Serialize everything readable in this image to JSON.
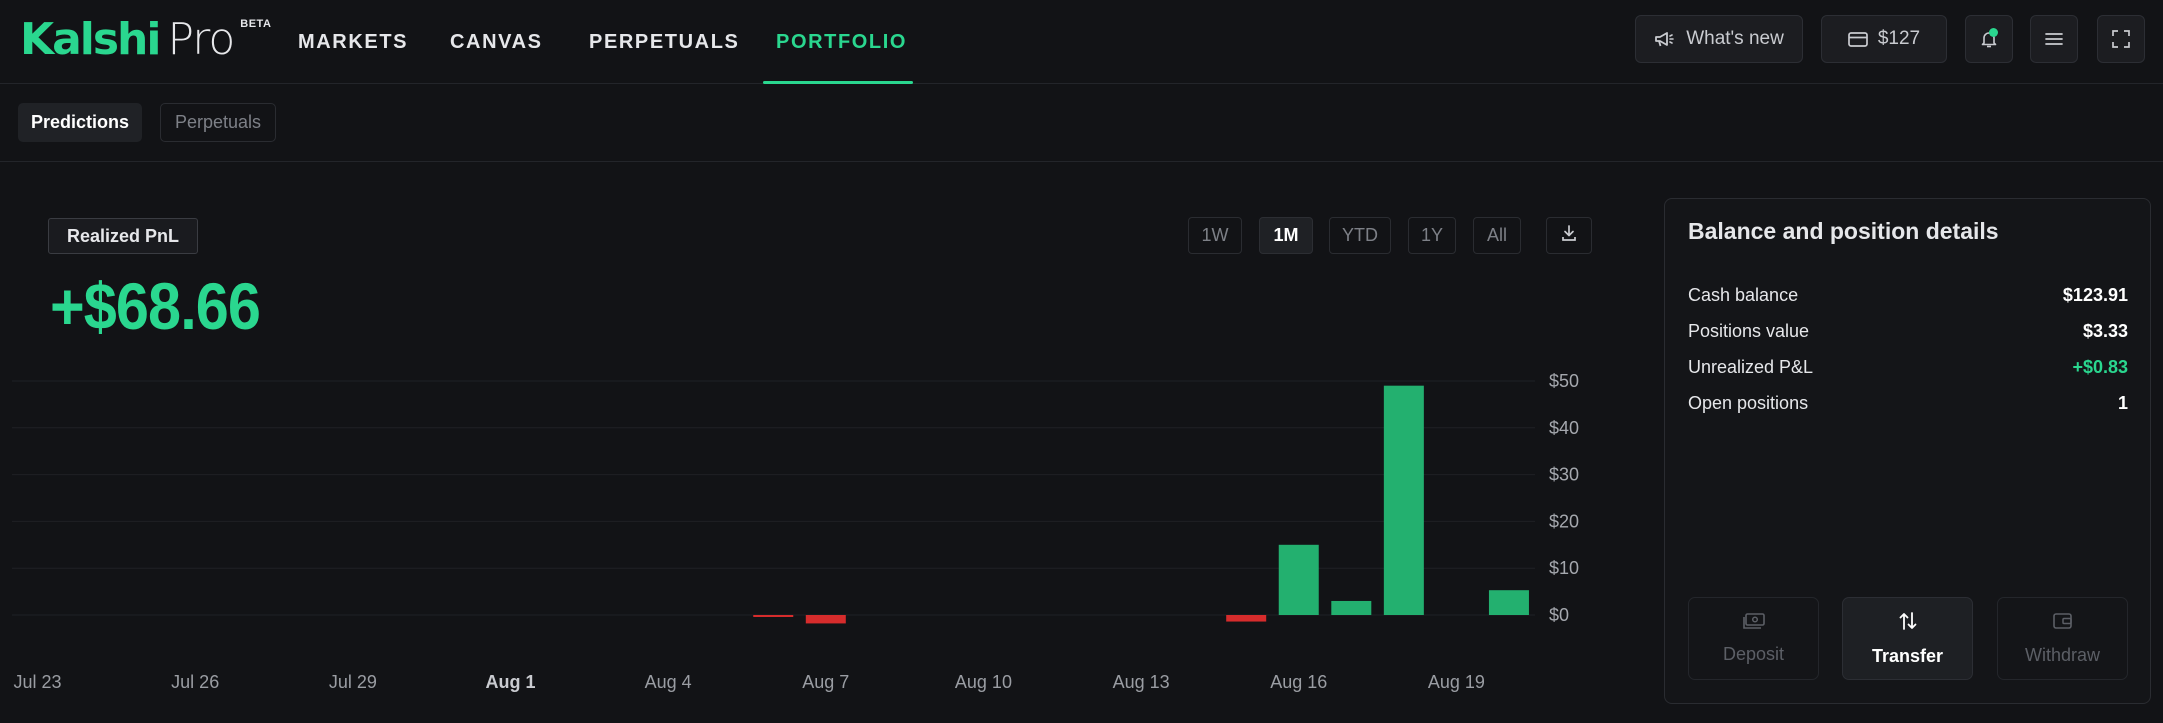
{
  "brand": {
    "name": "Kalshi",
    "product": "Pro",
    "badge": "BETA",
    "accent": "#2ad78f"
  },
  "nav": {
    "items": [
      {
        "label": "MARKETS"
      },
      {
        "label": "CANVAS"
      },
      {
        "label": "PERPETUALS"
      },
      {
        "label": "PORTFOLIO",
        "active": true
      }
    ]
  },
  "topbar": {
    "whats_new": "What's new",
    "balance": "$127",
    "icons": [
      "megaphone-icon",
      "card-icon",
      "bell-icon",
      "menu-icon",
      "fullscreen-icon"
    ]
  },
  "subtabs": [
    {
      "label": "Predictions",
      "active": true
    },
    {
      "label": "Perpetuals",
      "active": false
    }
  ],
  "pnl": {
    "label": "Realized PnL",
    "value": "+$68.66"
  },
  "ranges": [
    {
      "label": "1W",
      "active": false
    },
    {
      "label": "1M",
      "active": true
    },
    {
      "label": "YTD",
      "active": false
    },
    {
      "label": "1Y",
      "active": false
    },
    {
      "label": "All",
      "active": false
    }
  ],
  "chart_data": {
    "type": "bar",
    "x": [
      "Jul 22",
      "Jul 23",
      "Jul 24",
      "Jul 25",
      "Jul 26",
      "Jul 27",
      "Jul 28",
      "Jul 29",
      "Jul 30",
      "Jul 31",
      "Aug 1",
      "Aug 2",
      "Aug 3",
      "Aug 4",
      "Aug 5",
      "Aug 6",
      "Aug 7",
      "Aug 8",
      "Aug 9",
      "Aug 10",
      "Aug 11",
      "Aug 12",
      "Aug 13",
      "Aug 14",
      "Aug 15",
      "Aug 16",
      "Aug 17",
      "Aug 18",
      "Aug 19",
      "Aug 20"
    ],
    "values": [
      0,
      0,
      0,
      0,
      0,
      0,
      0,
      0,
      0,
      0,
      0,
      0,
      0,
      0,
      0,
      -0.3,
      -1.8,
      0,
      0,
      0,
      0,
      0,
      0,
      0,
      -1.4,
      15,
      3,
      49,
      0,
      5.3
    ],
    "xticks": [
      "Jul 23",
      "Jul 26",
      "Jul 29",
      "Aug 1",
      "Aug 4",
      "Aug 7",
      "Aug 10",
      "Aug 13",
      "Aug 16",
      "Aug 19"
    ],
    "xticks_bold": [
      "Aug 1"
    ],
    "yticks": [
      "$50",
      "$40",
      "$30",
      "$20",
      "$10",
      "$0"
    ],
    "ylim": [
      0,
      50
    ],
    "grid": true,
    "positive_color": "#23b06f",
    "negative_color": "#d62c2c"
  },
  "details": {
    "title": "Balance and position details",
    "rows": [
      {
        "label": "Cash balance",
        "value": "$123.91",
        "positive": false
      },
      {
        "label": "Positions value",
        "value": "$3.33",
        "positive": false
      },
      {
        "label": "Unrealized P&L",
        "value": "+$0.83",
        "positive": true
      },
      {
        "label": "Open positions",
        "value": "1",
        "positive": false
      }
    ],
    "actions": [
      {
        "label": "Deposit",
        "icon": "cash-icon",
        "enabled": false
      },
      {
        "label": "Transfer",
        "icon": "transfer-arrows-icon",
        "enabled": true
      },
      {
        "label": "Withdraw",
        "icon": "wallet-icon",
        "enabled": false
      }
    ]
  }
}
